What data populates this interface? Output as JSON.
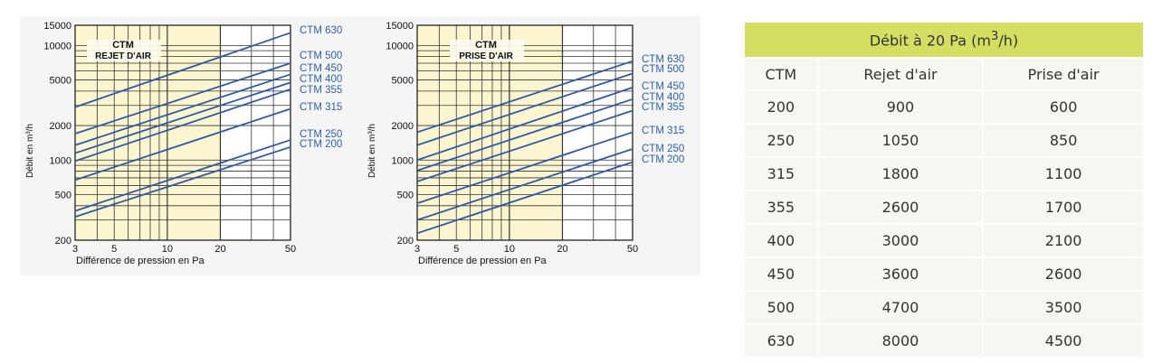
{
  "chart_data": [
    {
      "type": "line",
      "title": "CTM",
      "subtitle": "REJET D'AIR",
      "xlabel": "Différence de pression en Pa",
      "ylabel": "Débit en m³/h",
      "xscale": "log",
      "yscale": "log",
      "xlim": [
        3,
        50
      ],
      "ylim": [
        200,
        15000
      ],
      "xticks": [
        3,
        5,
        10,
        20,
        50
      ],
      "xtick_labels": [
        "3",
        "5",
        "10",
        "20",
        "50"
      ],
      "yticks": [
        200,
        500,
        1000,
        2000,
        5000,
        10000,
        15000
      ],
      "ytick_labels": [
        "200",
        "500",
        "1000",
        "2000",
        "5000",
        "10000",
        "15000"
      ],
      "highlight_x_range": [
        3,
        20
      ],
      "grid": true,
      "legend": "right",
      "series": [
        {
          "name": "CTM 630",
          "x": [
            3,
            50
          ],
          "y": [
            2900,
            12900
          ]
        },
        {
          "name": "CTM 500",
          "x": [
            3,
            50
          ],
          "y": [
            1700,
            7000
          ]
        },
        {
          "name": "CTM 450",
          "x": [
            3,
            50
          ],
          "y": [
            1350,
            5600
          ]
        },
        {
          "name": "CTM 400",
          "x": [
            3,
            50
          ],
          "y": [
            1150,
            4750
          ]
        },
        {
          "name": "CTM 355",
          "x": [
            3,
            50
          ],
          "y": [
            980,
            4150
          ]
        },
        {
          "name": "CTM 315",
          "x": [
            3,
            50
          ],
          "y": [
            670,
            2800
          ]
        },
        {
          "name": "CTM 250",
          "x": [
            3,
            50
          ],
          "y": [
            360,
            1500
          ]
        },
        {
          "name": "CTM 200",
          "x": [
            3,
            50
          ],
          "y": [
            320,
            1300
          ]
        }
      ]
    },
    {
      "type": "line",
      "title": "CTM",
      "subtitle": "PRISE D'AIR",
      "xlabel": "Différence de pression en Pa",
      "ylabel": "Débit en m³/h",
      "xscale": "log",
      "yscale": "log",
      "xlim": [
        3,
        50
      ],
      "ylim": [
        200,
        15000
      ],
      "xticks": [
        3,
        5,
        10,
        20,
        50
      ],
      "xtick_labels": [
        "3",
        "5",
        "10",
        "20",
        "50"
      ],
      "yticks": [
        200,
        500,
        1000,
        2000,
        5000,
        10000,
        15000
      ],
      "ytick_labels": [
        "200",
        "500",
        "1000",
        "2000",
        "5000",
        "10000",
        "15000"
      ],
      "highlight_x_range": [
        3,
        20
      ],
      "grid": true,
      "legend": "right",
      "series": [
        {
          "name": "CTM 630",
          "x": [
            3,
            50
          ],
          "y": [
            1750,
            7300
          ]
        },
        {
          "name": "CTM 500",
          "x": [
            3,
            50
          ],
          "y": [
            1350,
            5700
          ]
        },
        {
          "name": "CTM 450",
          "x": [
            3,
            50
          ],
          "y": [
            1000,
            4300
          ]
        },
        {
          "name": "CTM 400",
          "x": [
            3,
            50
          ],
          "y": [
            810,
            3400
          ]
        },
        {
          "name": "CTM 355",
          "x": [
            3,
            50
          ],
          "y": [
            650,
            2700
          ]
        },
        {
          "name": "CTM 315",
          "x": [
            3,
            50
          ],
          "y": [
            420,
            1750
          ]
        },
        {
          "name": "CTM 250",
          "x": [
            3,
            50
          ],
          "y": [
            300,
            1250
          ]
        },
        {
          "name": "CTM 200",
          "x": [
            3,
            50
          ],
          "y": [
            230,
            960
          ]
        }
      ]
    }
  ],
  "table": {
    "title_prefix": "Débit à 20 Pa (m",
    "title_sup": "3",
    "title_suffix": "/h)",
    "headers": [
      "CTM",
      "Rejet d'air",
      "Prise d'air"
    ],
    "rows": [
      [
        "200",
        "900",
        "600"
      ],
      [
        "250",
        "1050",
        "850"
      ],
      [
        "315",
        "1800",
        "1100"
      ],
      [
        "355",
        "2600",
        "1700"
      ],
      [
        "400",
        "3000",
        "2100"
      ],
      [
        "450",
        "3600",
        "2600"
      ],
      [
        "500",
        "4700",
        "3500"
      ],
      [
        "630",
        "8000",
        "4500"
      ]
    ]
  },
  "colors": {
    "series_line": "#2f5aa8",
    "legend_text": "#2c5fb0",
    "highlight": "#fbf6cf",
    "table_title_bg": "#d4df62",
    "table_cell_bg": "#f7f7f1"
  }
}
